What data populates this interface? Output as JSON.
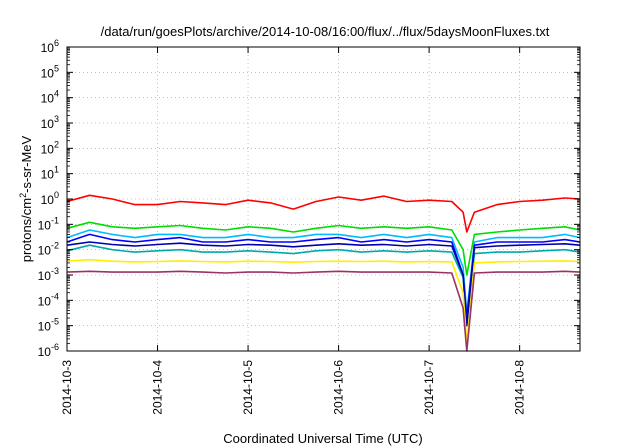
{
  "chart_data": {
    "type": "line",
    "title": "/data/run/goesPlots/archive/2014-10-08/16:00/flux/../flux/5daysMoonFluxes.txt",
    "xlabel": "Coordinated Universal Time (UTC)",
    "ylabel_main": "protons/cm",
    "ylabel_sup": "2",
    "ylabel_tail": "-s-sr-MeV",
    "xlim": [
      "2014-10-03",
      "2014-10-08 16:00"
    ],
    "x_ticks": [
      "2014-10-3",
      "2014-10-4",
      "2014-10-5",
      "2014-10-6",
      "2014-10-7",
      "2014-10-8"
    ],
    "y_scale": "log",
    "ylim": [
      1e-06,
      1000000.0
    ],
    "y_ticks": [
      {
        "base": "10",
        "exp": "-6"
      },
      {
        "base": "10",
        "exp": "-5"
      },
      {
        "base": "10",
        "exp": "-4"
      },
      {
        "base": "10",
        "exp": "-3"
      },
      {
        "base": "10",
        "exp": "-2"
      },
      {
        "base": "10",
        "exp": "-1"
      },
      {
        "base": "10",
        "exp": "0"
      },
      {
        "base": "10",
        "exp": "1"
      },
      {
        "base": "10",
        "exp": "2"
      },
      {
        "base": "10",
        "exp": "3"
      },
      {
        "base": "10",
        "exp": "4"
      },
      {
        "base": "10",
        "exp": "5"
      },
      {
        "base": "10",
        "exp": "6"
      }
    ],
    "grid": true,
    "series": [
      {
        "color": "#ff0000",
        "x": [
          "2014-10-03 00:00",
          "2014-10-03 06:00",
          "2014-10-03 12:00",
          "2014-10-03 18:00",
          "2014-10-04 00:00",
          "2014-10-04 06:00",
          "2014-10-04 12:00",
          "2014-10-04 18:00",
          "2014-10-05 00:00",
          "2014-10-05 06:00",
          "2014-10-05 12:00",
          "2014-10-05 18:00",
          "2014-10-06 00:00",
          "2014-10-06 06:00",
          "2014-10-06 12:00",
          "2014-10-06 18:00",
          "2014-10-07 00:00",
          "2014-10-07 06:00",
          "2014-10-07 09:00",
          "2014-10-07 10:00",
          "2014-10-07 12:00",
          "2014-10-07 18:00",
          "2014-10-08 00:00",
          "2014-10-08 06:00",
          "2014-10-08 12:00",
          "2014-10-08 16:00"
        ],
        "y": [
          0.8,
          1.4,
          1.0,
          0.6,
          0.6,
          0.8,
          0.7,
          0.6,
          0.9,
          0.7,
          0.4,
          0.8,
          1.2,
          0.9,
          1.3,
          0.8,
          0.9,
          0.8,
          0.3,
          0.05,
          0.3,
          0.6,
          0.8,
          0.9,
          1.1,
          1.0
        ]
      },
      {
        "color": "#00dd00",
        "x": [
          "2014-10-03 00:00",
          "2014-10-03 06:00",
          "2014-10-03 12:00",
          "2014-10-03 18:00",
          "2014-10-04 00:00",
          "2014-10-04 06:00",
          "2014-10-04 12:00",
          "2014-10-04 18:00",
          "2014-10-05 00:00",
          "2014-10-05 06:00",
          "2014-10-05 12:00",
          "2014-10-05 18:00",
          "2014-10-06 00:00",
          "2014-10-06 06:00",
          "2014-10-06 12:00",
          "2014-10-06 18:00",
          "2014-10-07 00:00",
          "2014-10-07 06:00",
          "2014-10-07 09:00",
          "2014-10-07 10:00",
          "2014-10-07 12:00",
          "2014-10-07 18:00",
          "2014-10-08 00:00",
          "2014-10-08 06:00",
          "2014-10-08 12:00",
          "2014-10-08 16:00"
        ],
        "y": [
          0.07,
          0.12,
          0.08,
          0.07,
          0.08,
          0.09,
          0.07,
          0.06,
          0.08,
          0.07,
          0.05,
          0.07,
          0.09,
          0.07,
          0.08,
          0.07,
          0.08,
          0.06,
          0.01,
          0.001,
          0.04,
          0.05,
          0.06,
          0.07,
          0.08,
          0.06
        ]
      },
      {
        "color": "#00bbff",
        "x": [
          "2014-10-03 00:00",
          "2014-10-03 06:00",
          "2014-10-03 12:00",
          "2014-10-03 18:00",
          "2014-10-04 00:00",
          "2014-10-04 06:00",
          "2014-10-04 12:00",
          "2014-10-04 18:00",
          "2014-10-05 00:00",
          "2014-10-05 06:00",
          "2014-10-05 12:00",
          "2014-10-05 18:00",
          "2014-10-06 00:00",
          "2014-10-06 06:00",
          "2014-10-06 12:00",
          "2014-10-06 18:00",
          "2014-10-07 00:00",
          "2014-10-07 06:00",
          "2014-10-07 09:00",
          "2014-10-07 10:00",
          "2014-10-07 12:00",
          "2014-10-07 18:00",
          "2014-10-08 00:00",
          "2014-10-08 06:00",
          "2014-10-08 12:00",
          "2014-10-08 16:00"
        ],
        "y": [
          0.03,
          0.06,
          0.04,
          0.03,
          0.04,
          0.04,
          0.03,
          0.03,
          0.04,
          0.03,
          0.03,
          0.04,
          0.04,
          0.03,
          0.04,
          0.03,
          0.04,
          0.03,
          0.002,
          3e-05,
          0.02,
          0.03,
          0.03,
          0.03,
          0.04,
          0.03
        ]
      },
      {
        "color": "#0000ff",
        "x": [
          "2014-10-03 00:00",
          "2014-10-03 06:00",
          "2014-10-03 12:00",
          "2014-10-03 18:00",
          "2014-10-04 00:00",
          "2014-10-04 06:00",
          "2014-10-04 12:00",
          "2014-10-04 18:00",
          "2014-10-05 00:00",
          "2014-10-05 06:00",
          "2014-10-05 12:00",
          "2014-10-05 18:00",
          "2014-10-06 00:00",
          "2014-10-06 06:00",
          "2014-10-06 12:00",
          "2014-10-06 18:00",
          "2014-10-07 00:00",
          "2014-10-07 06:00",
          "2014-10-07 09:00",
          "2014-10-07 10:00",
          "2014-10-07 12:00",
          "2014-10-07 18:00",
          "2014-10-08 00:00",
          "2014-10-08 06:00",
          "2014-10-08 12:00",
          "2014-10-08 16:00"
        ],
        "y": [
          0.02,
          0.04,
          0.025,
          0.02,
          0.025,
          0.03,
          0.02,
          0.02,
          0.025,
          0.02,
          0.02,
          0.025,
          0.03,
          0.02,
          0.025,
          0.02,
          0.025,
          0.02,
          0.001,
          2e-05,
          0.015,
          0.02,
          0.02,
          0.02,
          0.025,
          0.02
        ]
      },
      {
        "color": "#00aaaa",
        "x": [
          "2014-10-03 00:00",
          "2014-10-03 06:00",
          "2014-10-03 12:00",
          "2014-10-03 18:00",
          "2014-10-04 00:00",
          "2014-10-04 06:00",
          "2014-10-04 12:00",
          "2014-10-04 18:00",
          "2014-10-05 00:00",
          "2014-10-05 06:00",
          "2014-10-05 12:00",
          "2014-10-05 18:00",
          "2014-10-06 00:00",
          "2014-10-06 06:00",
          "2014-10-06 12:00",
          "2014-10-06 18:00",
          "2014-10-07 00:00",
          "2014-10-07 06:00",
          "2014-10-07 09:00",
          "2014-10-07 10:00",
          "2014-10-07 12:00",
          "2014-10-07 18:00",
          "2014-10-08 00:00",
          "2014-10-08 06:00",
          "2014-10-08 12:00",
          "2014-10-08 16:00"
        ],
        "y": [
          0.009,
          0.015,
          0.01,
          0.008,
          0.009,
          0.01,
          0.008,
          0.008,
          0.009,
          0.008,
          0.007,
          0.009,
          0.01,
          0.008,
          0.009,
          0.008,
          0.009,
          0.008,
          0.0008,
          1e-05,
          0.007,
          0.008,
          0.008,
          0.009,
          0.01,
          0.008
        ]
      },
      {
        "color": "#0000aa",
        "x": [
          "2014-10-03 00:00",
          "2014-10-03 06:00",
          "2014-10-03 12:00",
          "2014-10-03 18:00",
          "2014-10-04 00:00",
          "2014-10-04 06:00",
          "2014-10-04 12:00",
          "2014-10-04 18:00",
          "2014-10-05 00:00",
          "2014-10-05 06:00",
          "2014-10-05 12:00",
          "2014-10-05 18:00",
          "2014-10-06 00:00",
          "2014-10-06 06:00",
          "2014-10-06 12:00",
          "2014-10-06 18:00",
          "2014-10-07 00:00",
          "2014-10-07 06:00",
          "2014-10-07 09:00",
          "2014-10-07 10:00",
          "2014-10-07 12:00",
          "2014-10-07 18:00",
          "2014-10-08 00:00",
          "2014-10-08 06:00",
          "2014-10-08 12:00",
          "2014-10-08 16:00"
        ],
        "y": [
          0.015,
          0.02,
          0.016,
          0.014,
          0.016,
          0.018,
          0.015,
          0.014,
          0.016,
          0.015,
          0.013,
          0.015,
          0.017,
          0.015,
          0.016,
          0.014,
          0.016,
          0.014,
          0.001,
          1e-05,
          0.012,
          0.014,
          0.015,
          0.016,
          0.017,
          0.015
        ]
      },
      {
        "color": "#ffee00",
        "x": [
          "2014-10-03 00:00",
          "2014-10-03 06:00",
          "2014-10-03 12:00",
          "2014-10-03 18:00",
          "2014-10-04 00:00",
          "2014-10-04 06:00",
          "2014-10-04 12:00",
          "2014-10-04 18:00",
          "2014-10-05 00:00",
          "2014-10-05 06:00",
          "2014-10-05 12:00",
          "2014-10-05 18:00",
          "2014-10-06 00:00",
          "2014-10-06 06:00",
          "2014-10-06 12:00",
          "2014-10-06 18:00",
          "2014-10-07 00:00",
          "2014-10-07 06:00",
          "2014-10-07 09:00",
          "2014-10-07 10:00",
          "2014-10-07 12:00",
          "2014-10-07 18:00",
          "2014-10-08 00:00",
          "2014-10-08 06:00",
          "2014-10-08 12:00",
          "2014-10-08 16:00"
        ],
        "y": [
          0.0035,
          0.004,
          0.0035,
          0.0033,
          0.0034,
          0.0036,
          0.0034,
          0.0033,
          0.0035,
          0.0034,
          0.0032,
          0.0034,
          0.0035,
          0.0034,
          0.0035,
          0.0033,
          0.0034,
          0.0033,
          0.0002,
          2e-06,
          0.003,
          0.0033,
          0.0034,
          0.0035,
          0.0036,
          0.0034
        ]
      },
      {
        "color": "#993366",
        "x": [
          "2014-10-03 00:00",
          "2014-10-03 06:00",
          "2014-10-03 12:00",
          "2014-10-03 18:00",
          "2014-10-04 00:00",
          "2014-10-04 06:00",
          "2014-10-04 12:00",
          "2014-10-04 18:00",
          "2014-10-05 00:00",
          "2014-10-05 06:00",
          "2014-10-05 12:00",
          "2014-10-05 18:00",
          "2014-10-06 00:00",
          "2014-10-06 06:00",
          "2014-10-06 12:00",
          "2014-10-06 18:00",
          "2014-10-07 00:00",
          "2014-10-07 06:00",
          "2014-10-07 09:00",
          "2014-10-07 10:00",
          "2014-10-07 12:00",
          "2014-10-07 18:00",
          "2014-10-08 00:00",
          "2014-10-08 06:00",
          "2014-10-08 12:00",
          "2014-10-08 16:00"
        ],
        "y": [
          0.0013,
          0.0014,
          0.0013,
          0.0013,
          0.0013,
          0.0014,
          0.0013,
          0.0012,
          0.0013,
          0.0013,
          0.0012,
          0.0013,
          0.0014,
          0.0013,
          0.0013,
          0.0013,
          0.0013,
          0.0012,
          5e-05,
          1e-06,
          0.0012,
          0.0013,
          0.0013,
          0.0013,
          0.0014,
          0.0013
        ]
      }
    ]
  }
}
